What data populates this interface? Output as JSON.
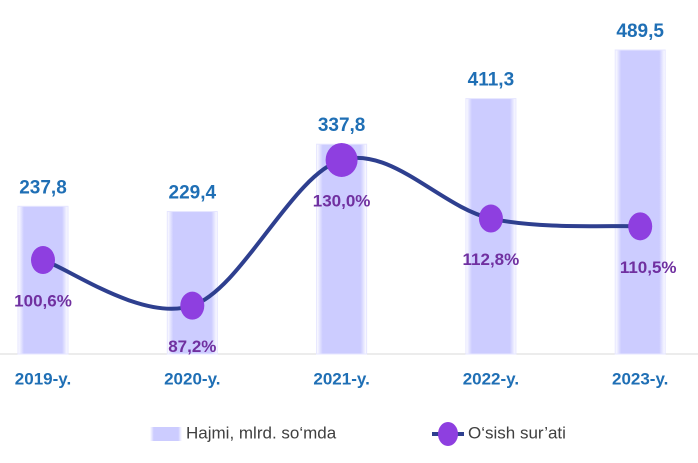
{
  "chart_data": {
    "type": "bar",
    "categories": [
      "2019-y.",
      "2020-y.",
      "2021-y.",
      "2022-y.",
      "2023-y."
    ],
    "series": [
      {
        "name": "Hajmi, mlrd. so‘mda",
        "type": "bar",
        "color": "#ccccff",
        "values": [
          237.8,
          229.4,
          337.8,
          411.3,
          489.5
        ],
        "value_labels": [
          "237,8",
          "229,4",
          "337,8",
          "411,3",
          "489,5"
        ]
      },
      {
        "name": "O‘sish sur’ati",
        "type": "line",
        "axis": "y2",
        "color": "#2e3f8f",
        "marker_color": "#8e3fe0",
        "values": [
          100.6,
          87.2,
          130.0,
          112.8,
          110.5
        ],
        "value_labels": [
          "100,6%",
          "87,2%",
          "130,0%",
          "112,8%",
          "110,5%"
        ]
      }
    ],
    "ylim": [
      0,
      570
    ],
    "y2lim": [
      73,
      177
    ],
    "grid": false
  }
}
